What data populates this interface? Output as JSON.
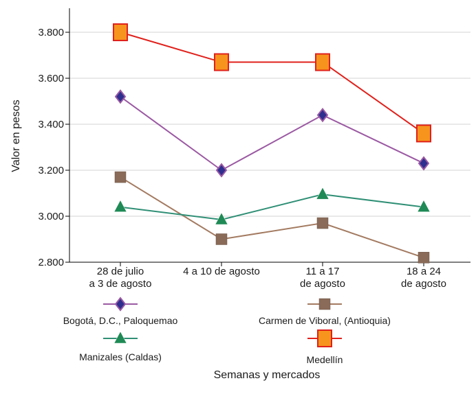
{
  "chart_data": {
    "type": "line",
    "title": "",
    "xlabel": "Semanas y mercados",
    "ylabel": "Valor en pesos",
    "ylim": [
      2800,
      3900
    ],
    "yticks": [
      2800,
      3000,
      3200,
      3400,
      3600,
      3800
    ],
    "ytick_labels": [
      "2.800",
      "3.000",
      "3.200",
      "3.400",
      "3.600",
      "3.800"
    ],
    "categories": [
      [
        "28 de julio",
        "a 3 de agosto"
      ],
      [
        "4 a 10 de agosto"
      ],
      [
        "11 a 17",
        "de agosto"
      ],
      [
        "18 a 24",
        "de agosto"
      ]
    ],
    "grid": "horizontal",
    "legend_position": "bottom",
    "series": [
      {
        "name": "Bogotá, D.C., Paloquemao",
        "color": "#9b59a3",
        "marker": "diamond",
        "marker_color": "#2e2f8f",
        "values": [
          3520,
          3200,
          3440,
          3230
        ]
      },
      {
        "name": "Carmen de Viboral, (Antioquia)",
        "color": "#a37a60",
        "marker": "square",
        "marker_color": "#8a6a58",
        "values": [
          3170,
          2900,
          2970,
          2820
        ]
      },
      {
        "name": "Manizales (Caldas)",
        "color": "#2f8f75",
        "marker": "triangle",
        "marker_color": "#1f8a55",
        "values": [
          3040,
          2985,
          3095,
          3040
        ]
      },
      {
        "name": "Medellín",
        "color": "#e0201b",
        "marker": "square-large",
        "marker_color": "#f7941d",
        "values": [
          3800,
          3670,
          3670,
          3360
        ]
      }
    ]
  }
}
